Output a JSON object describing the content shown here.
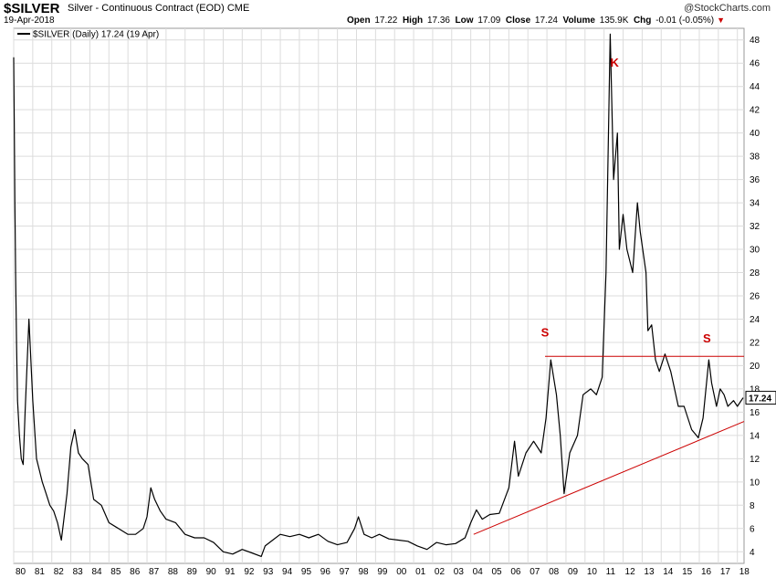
{
  "header": {
    "symbol": "$SILVER",
    "description": "Silver - Continuous Contract (EOD)",
    "exchange": "CME",
    "logo": "@StockCharts.com",
    "date": "19-Apr-2018",
    "open_label": "Open",
    "open": "17.22",
    "high_label": "High",
    "high": "17.36",
    "low_label": "Low",
    "low": "17.09",
    "close_label": "Close",
    "close": "17.24",
    "volume_label": "Volume",
    "volume": "135.9K",
    "chg_label": "Chg",
    "chg": "-0.01 (-0.05%)"
  },
  "chart_data": {
    "type": "line",
    "legend": "$SILVER (Daily) 17.24 (19 Apr)",
    "last_value_label": "17.24",
    "xlabel": "",
    "ylabel": "",
    "ylim": [
      3,
      49
    ],
    "xlim": [
      1980.0,
      2018.35
    ],
    "y_ticks": [
      4,
      6,
      8,
      10,
      12,
      14,
      16,
      18,
      20,
      22,
      24,
      26,
      28,
      30,
      32,
      34,
      36,
      38,
      40,
      42,
      44,
      46,
      48
    ],
    "x_ticks": [
      "80",
      "81",
      "82",
      "83",
      "84",
      "85",
      "86",
      "87",
      "88",
      "89",
      "90",
      "91",
      "92",
      "93",
      "94",
      "95",
      "96",
      "97",
      "98",
      "99",
      "00",
      "01",
      "02",
      "03",
      "04",
      "05",
      "06",
      "07",
      "08",
      "09",
      "10",
      "11",
      "12",
      "13",
      "14",
      "15",
      "16",
      "17",
      "18"
    ],
    "grid": true,
    "series": [
      {
        "name": "$SILVER",
        "color": "#000000",
        "x": [
          1980.0,
          1980.03,
          1980.06,
          1980.1,
          1980.15,
          1980.2,
          1980.3,
          1980.4,
          1980.5,
          1980.6,
          1980.8,
          1981.0,
          1981.2,
          1981.5,
          1981.7,
          1981.9,
          1982.1,
          1982.3,
          1982.5,
          1982.8,
          1983.0,
          1983.2,
          1983.4,
          1983.6,
          1983.9,
          1984.2,
          1984.6,
          1985.0,
          1985.5,
          1986.0,
          1986.4,
          1986.8,
          1987.0,
          1987.2,
          1987.4,
          1987.7,
          1988.0,
          1988.5,
          1989.0,
          1989.5,
          1990.0,
          1990.5,
          1991.0,
          1991.5,
          1992.0,
          1992.5,
          1993.0,
          1993.2,
          1993.6,
          1994.0,
          1994.5,
          1995.0,
          1995.5,
          1996.0,
          1996.5,
          1997.0,
          1997.5,
          1997.9,
          1998.1,
          1998.4,
          1998.8,
          1999.2,
          1999.7,
          2000.2,
          2000.7,
          2001.2,
          2001.7,
          2002.2,
          2002.7,
          2003.2,
          2003.7,
          2004.0,
          2004.3,
          2004.6,
          2005.0,
          2005.5,
          2006.0,
          2006.3,
          2006.5,
          2006.9,
          2007.3,
          2007.7,
          2007.95,
          2008.2,
          2008.5,
          2008.7,
          2008.9,
          2009.2,
          2009.6,
          2009.9,
          2010.3,
          2010.6,
          2010.9,
          2011.1,
          2011.32,
          2011.5,
          2011.7,
          2011.8,
          2012.0,
          2012.2,
          2012.5,
          2012.75,
          2012.9,
          2013.2,
          2013.3,
          2013.5,
          2013.7,
          2013.9,
          2014.2,
          2014.5,
          2014.9,
          2015.2,
          2015.6,
          2015.95,
          2016.2,
          2016.5,
          2016.65,
          2016.9,
          2017.1,
          2017.3,
          2017.5,
          2017.8,
          2018.0,
          2018.3
        ],
        "values": [
          46.5,
          41,
          34,
          28,
          22,
          17,
          14,
          12,
          11.5,
          16,
          24,
          17,
          12,
          10,
          9,
          8,
          7.5,
          6.5,
          5,
          9,
          13,
          14.5,
          12.5,
          12,
          11.5,
          8.5,
          8,
          6.5,
          6,
          5.5,
          5.5,
          6,
          7,
          9.5,
          8.5,
          7.5,
          6.8,
          6.5,
          5.5,
          5.2,
          5.2,
          4.8,
          4,
          3.8,
          4.2,
          3.9,
          3.6,
          4.5,
          5,
          5.5,
          5.3,
          5.5,
          5.2,
          5.5,
          4.9,
          4.6,
          4.8,
          6,
          7,
          5.5,
          5.2,
          5.5,
          5.1,
          5.0,
          4.9,
          4.5,
          4.2,
          4.8,
          4.6,
          4.7,
          5.2,
          6.5,
          7.6,
          6.8,
          7.2,
          7.3,
          9.5,
          13.5,
          10.5,
          12.5,
          13.5,
          12.5,
          15.5,
          20.5,
          17.5,
          14,
          9,
          12.5,
          14,
          17.5,
          18,
          17.5,
          19,
          28,
          48.5,
          36,
          40,
          30,
          33,
          30,
          28,
          34,
          31.5,
          28,
          23,
          23.5,
          20.5,
          19.5,
          21,
          19.5,
          16.5,
          16.5,
          14.5,
          13.8,
          15.5,
          20.5,
          18.5,
          16.5,
          18,
          17.5,
          16.5,
          17,
          16.5,
          17.24
        ]
      },
      {
        "name": "",
        "color": "#cc0000",
        "x": [
          2004.15,
          2018.35
        ],
        "values": [
          5.5,
          15.2
        ]
      },
      {
        "name": "",
        "color": "#cc0000",
        "x": [
          2007.9,
          2018.35
        ],
        "values": [
          20.8,
          20.8
        ]
      }
    ],
    "annotations": [
      {
        "text": "S",
        "x": 2007.9,
        "y": 22.5,
        "color": "#cc0000"
      },
      {
        "text": "K",
        "x": 2011.55,
        "y": 45.7,
        "color": "#cc0000"
      },
      {
        "text": "S",
        "x": 2016.4,
        "y": 22.0,
        "color": "#cc0000"
      }
    ]
  }
}
